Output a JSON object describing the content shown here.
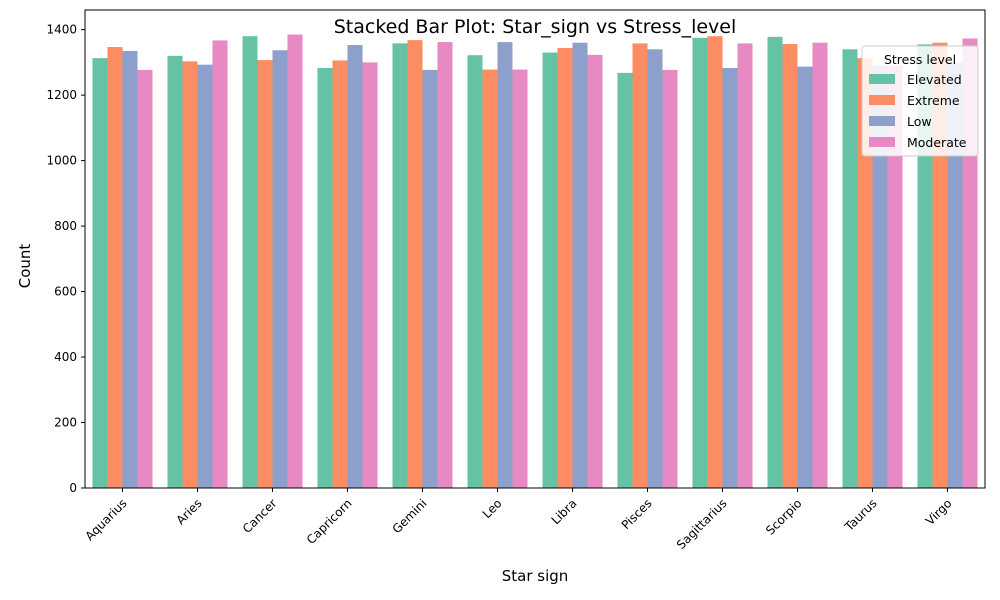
{
  "chart_data": {
    "type": "bar",
    "title": "Stacked Bar Plot: Star_sign vs Stress_level",
    "xlabel": "Star sign",
    "ylabel": "Count",
    "ylim": [
      0,
      1460
    ],
    "yticks": [
      0,
      200,
      400,
      600,
      800,
      1000,
      1200,
      1400
    ],
    "grid": false,
    "legend": {
      "title": "Stress level",
      "placement": "top-right"
    },
    "categories": [
      "Aquarius",
      "Aries",
      "Cancer",
      "Capricorn",
      "Gemini",
      "Leo",
      "Libra",
      "Pisces",
      "Sagittarius",
      "Scorpio",
      "Taurus",
      "Virgo"
    ],
    "series": [
      {
        "name": "Elevated",
        "color": "#66c2a5",
        "values": [
          1313,
          1320,
          1380,
          1283,
          1358,
          1322,
          1330,
          1268,
          1375,
          1378,
          1340,
          1355
        ]
      },
      {
        "name": "Extreme",
        "color": "#fc8d62",
        "values": [
          1347,
          1303,
          1307,
          1306,
          1368,
          1278,
          1344,
          1358,
          1380,
          1356,
          1313,
          1360
        ]
      },
      {
        "name": "Low",
        "color": "#8da0cb",
        "values": [
          1335,
          1293,
          1337,
          1353,
          1277,
          1362,
          1360,
          1340,
          1283,
          1287,
          1290,
          1300
        ]
      },
      {
        "name": "Moderate",
        "color": "#e78ac3",
        "values": [
          1277,
          1367,
          1385,
          1300,
          1362,
          1278,
          1323,
          1277,
          1358,
          1360,
          1290,
          1373
        ]
      }
    ]
  }
}
